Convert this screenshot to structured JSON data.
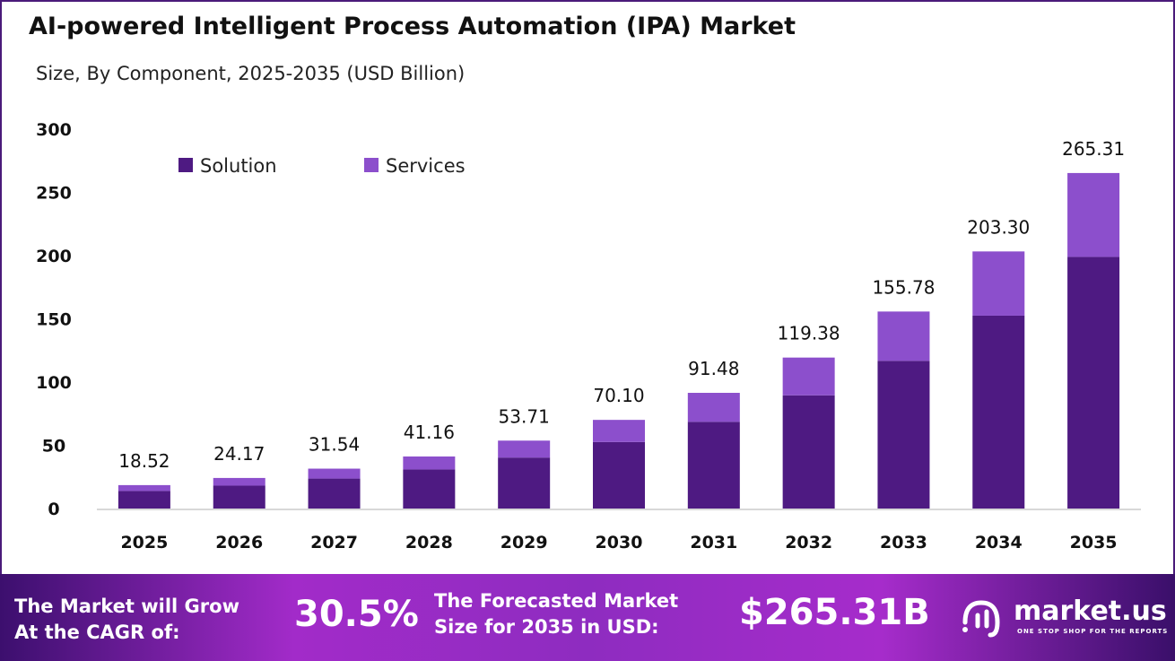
{
  "title": "AI-powered Intelligent Process Automation (IPA) Market",
  "subtitle": "Size, By Component, 2025-2035 (USD Billion)",
  "chart_data": {
    "type": "bar",
    "stacked": true,
    "categories": [
      "2025",
      "2026",
      "2027",
      "2028",
      "2029",
      "2030",
      "2031",
      "2032",
      "2033",
      "2034",
      "2035"
    ],
    "series": [
      {
        "name": "Solution",
        "color": "#4e1a82",
        "values": [
          13.9,
          18.1,
          23.7,
          30.9,
          40.3,
          52.6,
          68.6,
          89.5,
          116.8,
          152.5,
          199.0
        ]
      },
      {
        "name": "Services",
        "color": "#8c4fcc",
        "values": [
          4.62,
          6.07,
          7.84,
          10.26,
          13.41,
          17.5,
          22.88,
          29.88,
          38.98,
          50.8,
          66.31
        ]
      }
    ],
    "totals": [
      "18.52",
      "24.17",
      "31.54",
      "41.16",
      "53.71",
      "70.10",
      "91.48",
      "119.38",
      "155.78",
      "203.30",
      "265.31"
    ],
    "yticks": [
      "0",
      "50",
      "100",
      "150",
      "200",
      "250",
      "300"
    ],
    "ylim": [
      0,
      300
    ],
    "grid": false,
    "legend_position": "top-left"
  },
  "banner": {
    "cagr_label_1": "The Market will Grow",
    "cagr_label_2": "At the CAGR of:",
    "cagr_value": "30.5%",
    "forecast_label_1": "The Forecasted Market",
    "forecast_label_2": "Size for 2035 in USD:",
    "forecast_value": "$265.31B",
    "logo_name": "market.us",
    "logo_tagline": "ONE STOP SHOP FOR THE REPORTS"
  }
}
